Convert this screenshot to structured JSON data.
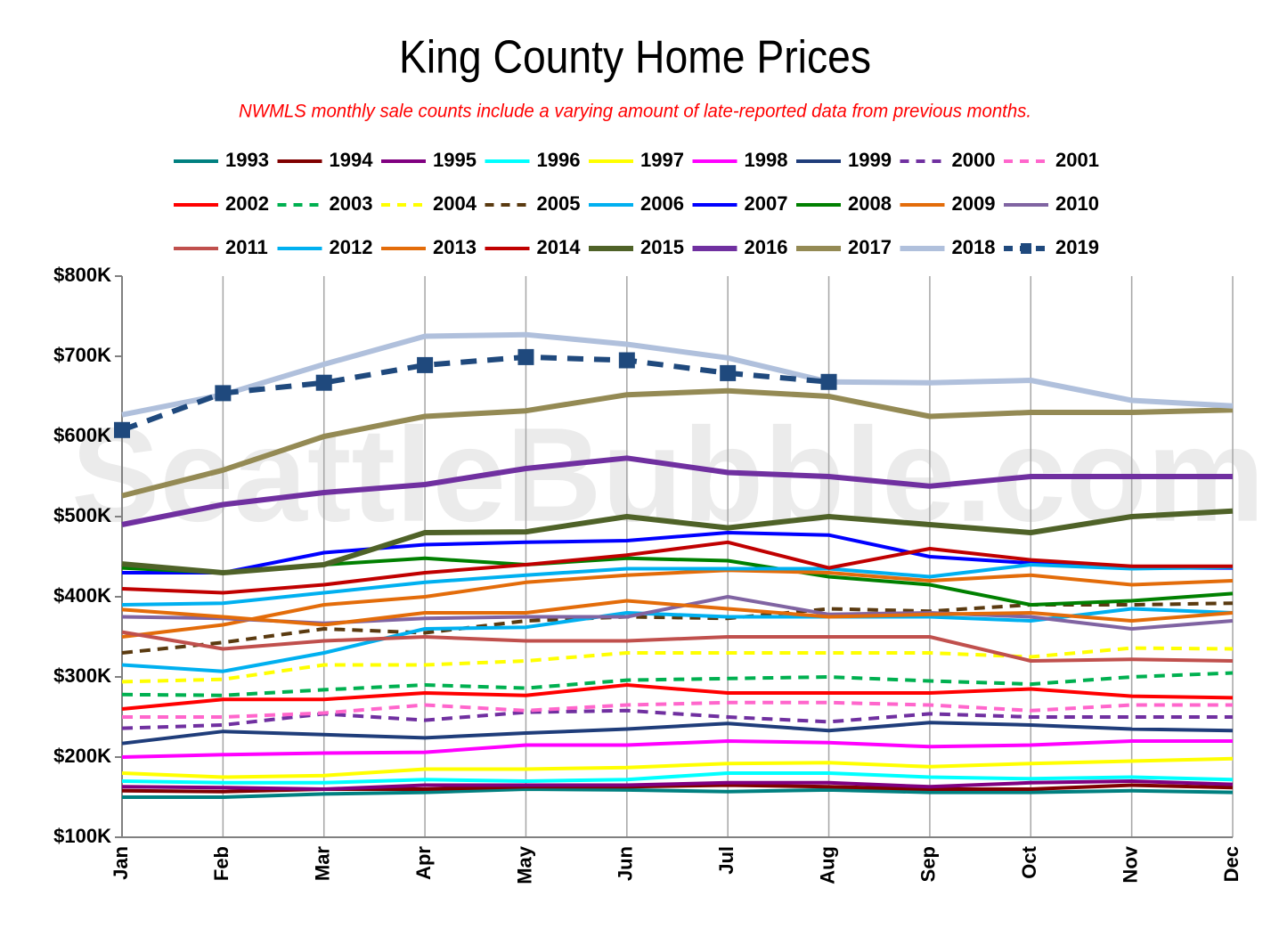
{
  "chart_data": {
    "type": "line",
    "title": "King County Home Prices",
    "subtitle": "NWMLS monthly sale counts include a varying amount of late-reported data from previous months.",
    "watermark": "SeattleBubble.com",
    "categories": [
      "Jan",
      "Feb",
      "Mar",
      "Apr",
      "May",
      "Jun",
      "Jul",
      "Aug",
      "Sep",
      "Oct",
      "Nov",
      "Dec"
    ],
    "ylim": [
      100000,
      800000
    ],
    "yticks": [
      {
        "value": 100000,
        "label": "$100K"
      },
      {
        "value": 200000,
        "label": "$200K"
      },
      {
        "value": 300000,
        "label": "$300K"
      },
      {
        "value": 400000,
        "label": "$400K"
      },
      {
        "value": 500000,
        "label": "$500K"
      },
      {
        "value": 600000,
        "label": "$600K"
      },
      {
        "value": 700000,
        "label": "$700K"
      },
      {
        "value": 800000,
        "label": "$800K"
      }
    ],
    "grid": "x",
    "series": [
      {
        "name": "1993",
        "color": "#008080",
        "values": [
          150000,
          150000,
          154000,
          156000,
          160000,
          159000,
          157000,
          159000,
          156000,
          156000,
          158000,
          156000
        ]
      },
      {
        "name": "1994",
        "color": "#800000",
        "values": [
          158000,
          157000,
          160000,
          160000,
          163000,
          163000,
          165000,
          163000,
          160000,
          160000,
          165000,
          162000
        ]
      },
      {
        "name": "1995",
        "color": "#800080",
        "values": [
          163000,
          162000,
          160000,
          165000,
          165000,
          165000,
          168000,
          168000,
          163000,
          168000,
          170000,
          166000
        ]
      },
      {
        "name": "1996",
        "color": "#00ffff",
        "values": [
          170000,
          168000,
          168000,
          172000,
          170000,
          172000,
          180000,
          180000,
          175000,
          173000,
          175000,
          172000
        ]
      },
      {
        "name": "1997",
        "color": "#ffff00",
        "values": [
          180000,
          175000,
          177000,
          185000,
          185000,
          187000,
          192000,
          193000,
          188000,
          192000,
          195000,
          198000
        ]
      },
      {
        "name": "1998",
        "color": "#ff00ff",
        "values": [
          200000,
          203000,
          205000,
          206000,
          215000,
          215000,
          220000,
          218000,
          213000,
          215000,
          220000,
          220000
        ]
      },
      {
        "name": "1999",
        "color": "#1f3d7a",
        "values": [
          217000,
          232000,
          228000,
          224000,
          230000,
          235000,
          242000,
          233000,
          243000,
          240000,
          235000,
          233000
        ]
      },
      {
        "name": "2000",
        "color": "#7030a0",
        "dash": true,
        "values": [
          236000,
          240000,
          254000,
          246000,
          256000,
          258000,
          250000,
          244000,
          254000,
          250000,
          250000,
          250000
        ]
      },
      {
        "name": "2001",
        "color": "#ff66cc",
        "dash": true,
        "values": [
          250000,
          250000,
          255000,
          265000,
          258000,
          265000,
          268000,
          268000,
          265000,
          258000,
          265000,
          265000
        ]
      },
      {
        "name": "2002",
        "color": "#ff0000",
        "values": [
          260000,
          272000,
          272000,
          280000,
          277000,
          290000,
          280000,
          280000,
          280000,
          285000,
          276000,
          274000
        ]
      },
      {
        "name": "2003",
        "color": "#00b050",
        "dash": true,
        "values": [
          278000,
          277000,
          284000,
          290000,
          286000,
          296000,
          298000,
          300000,
          295000,
          291000,
          300000,
          305000
        ]
      },
      {
        "name": "2004",
        "color": "#ffff00",
        "dash": true,
        "values": [
          294000,
          297000,
          315000,
          315000,
          320000,
          330000,
          330000,
          330000,
          330000,
          325000,
          336000,
          335000
        ]
      },
      {
        "name": "2005",
        "color": "#5a3a10",
        "dash": true,
        "values": [
          330000,
          343000,
          360000,
          355000,
          370000,
          375000,
          373000,
          385000,
          382000,
          390000,
          390000,
          392000
        ]
      },
      {
        "name": "2006",
        "color": "#00b0f0",
        "values": [
          315000,
          307000,
          330000,
          360000,
          362000,
          380000,
          375000,
          375000,
          375000,
          370000,
          385000,
          380000
        ]
      },
      {
        "name": "2007",
        "color": "#0000ff",
        "values": [
          430000,
          430000,
          455000,
          465000,
          468000,
          470000,
          480000,
          477000,
          450000,
          442000,
          436000,
          436000
        ]
      },
      {
        "name": "2008",
        "color": "#008000",
        "values": [
          436000,
          430000,
          440000,
          448000,
          440000,
          448000,
          445000,
          425000,
          415000,
          390000,
          395000,
          404000
        ]
      },
      {
        "name": "2009",
        "color": "#e36c0a",
        "values": [
          350000,
          365000,
          390000,
          400000,
          418000,
          427000,
          433000,
          430000,
          420000,
          427000,
          415000,
          420000
        ]
      },
      {
        "name": "2010",
        "color": "#8064a2",
        "values": [
          375000,
          373000,
          367000,
          373000,
          375000,
          375000,
          400000,
          378000,
          380000,
          375000,
          360000,
          370000
        ]
      },
      {
        "name": "2011",
        "color": "#c0504d",
        "values": [
          356000,
          335000,
          345000,
          350000,
          345000,
          345000,
          350000,
          350000,
          350000,
          320000,
          322000,
          320000
        ]
      },
      {
        "name": "2012",
        "color": "#00b0f0",
        "values": [
          390000,
          392000,
          405000,
          418000,
          427000,
          435000,
          435000,
          435000,
          425000,
          440000,
          435000,
          437000
        ]
      },
      {
        "name": "2013",
        "color": "#e36c0a",
        "values": [
          384000,
          375000,
          365000,
          380000,
          380000,
          395000,
          385000,
          375000,
          378000,
          380000,
          370000,
          380000
        ]
      },
      {
        "name": "2014",
        "color": "#c00000",
        "values": [
          410000,
          405000,
          415000,
          430000,
          440000,
          452000,
          468000,
          436000,
          460000,
          446000,
          438000,
          438000
        ]
      },
      {
        "name": "2015",
        "color": "#4f6228",
        "width": 6,
        "values": [
          441000,
          430000,
          440000,
          480000,
          481000,
          500000,
          486000,
          500000,
          490000,
          480000,
          500000,
          507000
        ]
      },
      {
        "name": "2016",
        "color": "#7030a0",
        "width": 6,
        "values": [
          490000,
          515000,
          530000,
          540000,
          560000,
          573000,
          555000,
          550000,
          538000,
          550000,
          550000,
          550000
        ]
      },
      {
        "name": "2017",
        "color": "#948a54",
        "width": 6,
        "values": [
          526000,
          558000,
          600000,
          625000,
          632000,
          652000,
          657000,
          650000,
          625000,
          630000,
          630000,
          633000
        ]
      },
      {
        "name": "2018",
        "color": "#b0c0dc",
        "width": 6,
        "values": [
          627000,
          652000,
          690000,
          725000,
          727000,
          715000,
          698000,
          668000,
          667000,
          670000,
          645000,
          638000
        ]
      },
      {
        "name": "2019",
        "color": "#1f497d",
        "width": 6,
        "dash": true,
        "marker": "square",
        "values": [
          608000,
          654000,
          667000,
          689000,
          699000,
          695000,
          679000,
          668000,
          null,
          null,
          null,
          null
        ]
      }
    ]
  }
}
